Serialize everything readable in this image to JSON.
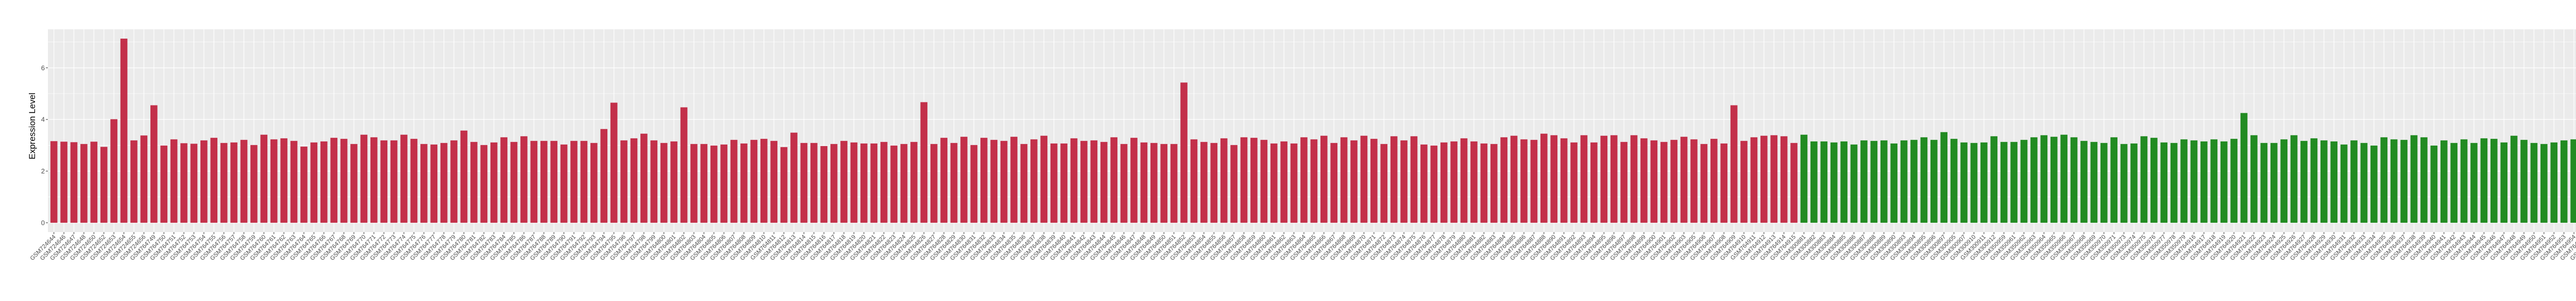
{
  "chart_data": {
    "type": "bar",
    "title": "",
    "xlabel": "",
    "ylabel": "Expression Level",
    "ylim": [
      -0.36,
      7.49
    ],
    "yticks": [
      0,
      2,
      4,
      6
    ],
    "grid": true,
    "legend": "none",
    "background": "#EBEBEB",
    "series": [
      {
        "color": "#C3304A",
        "categories": [
          "GSM724644",
          "GSM724646",
          "GSM724647",
          "GSM724648",
          "GSM724650",
          "GSM724652",
          "GSM724653",
          "GSM724654",
          "GSM724655",
          "GSM724656",
          "GSM764749",
          "GSM764750",
          "GSM764751",
          "GSM764752",
          "GSM764753",
          "GSM764754",
          "GSM764755",
          "GSM764756",
          "GSM764757",
          "GSM764758",
          "GSM764759",
          "GSM764760",
          "GSM764761",
          "GSM764762",
          "GSM764763",
          "GSM764764",
          "GSM764765",
          "GSM764766",
          "GSM764767",
          "GSM764768",
          "GSM764769",
          "GSM764770",
          "GSM764771",
          "GSM764772",
          "GSM764773",
          "GSM764774",
          "GSM764775",
          "GSM764776",
          "GSM764777",
          "GSM764778",
          "GSM764779",
          "GSM764780",
          "GSM764781",
          "GSM764782",
          "GSM764783",
          "GSM764784",
          "GSM764785",
          "GSM764786",
          "GSM764787",
          "GSM764788",
          "GSM764789",
          "GSM764790",
          "GSM764791",
          "GSM764792",
          "GSM764793",
          "GSM764794",
          "GSM764795",
          "GSM764796",
          "GSM764797",
          "GSM764798",
          "GSM764799",
          "GSM764800",
          "GSM764801",
          "GSM764802",
          "GSM764803",
          "GSM764804",
          "GSM764805",
          "GSM764806",
          "GSM764807",
          "GSM764808",
          "GSM764809",
          "GSM764810",
          "GSM764811",
          "GSM764812",
          "GSM764813",
          "GSM764814",
          "GSM764815",
          "GSM764816",
          "GSM764817",
          "GSM764818",
          "GSM764819",
          "GSM764820",
          "GSM764821",
          "GSM764822",
          "GSM764823",
          "GSM764824",
          "GSM764825",
          "GSM764826",
          "GSM764827",
          "GSM764828",
          "GSM764829",
          "GSM764830",
          "GSM764831",
          "GSM764832",
          "GSM764833",
          "GSM764834",
          "GSM764835",
          "GSM764836",
          "GSM764837",
          "GSM764838",
          "GSM764839",
          "GSM764840",
          "GSM764841",
          "GSM764842",
          "GSM764843",
          "GSM764844",
          "GSM764845",
          "GSM764846",
          "GSM764847",
          "GSM764848",
          "GSM764849",
          "GSM764850",
          "GSM764851",
          "GSM764852",
          "GSM764853",
          "GSM764854",
          "GSM764855",
          "GSM764856",
          "GSM764857",
          "GSM764858",
          "GSM764859",
          "GSM764860",
          "GSM764861",
          "GSM764862",
          "GSM764863",
          "GSM764864",
          "GSM764865",
          "GSM764866",
          "GSM764867",
          "GSM764868",
          "GSM764869",
          "GSM764870",
          "GSM764871",
          "GSM764872",
          "GSM764873",
          "GSM764874",
          "GSM764875",
          "GSM764876",
          "GSM764877",
          "GSM764878",
          "GSM764879",
          "GSM764880",
          "GSM764881",
          "GSM764882",
          "GSM764883",
          "GSM764884",
          "GSM764885",
          "GSM764886",
          "GSM764887",
          "GSM764888",
          "GSM764890",
          "GSM764891",
          "GSM764892",
          "GSM764893",
          "GSM764894",
          "GSM764895",
          "GSM764896",
          "GSM764897",
          "GSM764898",
          "GSM764899",
          "GSM764900",
          "GSM764901",
          "GSM764902",
          "GSM764903",
          "GSM764905",
          "GSM764906",
          "GSM764907",
          "GSM764908",
          "GSM764909",
          "GSM764910",
          "GSM764911",
          "GSM764912",
          "GSM764913",
          "GSM764914",
          "GSM764915"
        ],
        "values": [
          3.16,
          3.14,
          3.12,
          3.05,
          3.14,
          2.94,
          4.01,
          7.13,
          3.19,
          3.38,
          4.55,
          2.99,
          3.23,
          3.08,
          3.06,
          3.19,
          3.29,
          3.09,
          3.11,
          3.21,
          3.01,
          3.41,
          3.23,
          3.27,
          3.17,
          2.95,
          3.11,
          3.15,
          3.29,
          3.25,
          3.05,
          3.41,
          3.31,
          3.19,
          3.19,
          3.41,
          3.25,
          3.05,
          3.03,
          3.09,
          3.19,
          3.57,
          3.13,
          3.01,
          3.11,
          3.31,
          3.13,
          3.35,
          3.17,
          3.17,
          3.17,
          3.03,
          3.17,
          3.17,
          3.09,
          3.63,
          4.65,
          3.19,
          3.27,
          3.45,
          3.19,
          3.09,
          3.15,
          4.47,
          3.05,
          3.05,
          2.99,
          3.03,
          3.21,
          3.07,
          3.21,
          3.25,
          3.17,
          2.93,
          3.49,
          3.09,
          3.09,
          2.97,
          3.05,
          3.17,
          3.11,
          3.07,
          3.07,
          3.13,
          2.99,
          3.05,
          3.13,
          4.67,
          3.05,
          3.29,
          3.09,
          3.33,
          3.01,
          3.29,
          3.21,
          3.17,
          3.33,
          3.05,
          3.23,
          3.37,
          3.07,
          3.07,
          3.27,
          3.17,
          3.19,
          3.13,
          3.31,
          3.05,
          3.29,
          3.11,
          3.09,
          3.05,
          3.05,
          5.43,
          3.23,
          3.13,
          3.09,
          3.27,
          3.01,
          3.31,
          3.29,
          3.21,
          3.07,
          3.15,
          3.07,
          3.31,
          3.23,
          3.37,
          3.09,
          3.31,
          3.19,
          3.37,
          3.25,
          3.05,
          3.35,
          3.19,
          3.35,
          3.03,
          2.99,
          3.11,
          3.15,
          3.27,
          3.15,
          3.07,
          3.05,
          3.31,
          3.37,
          3.23,
          3.21,
          3.45,
          3.39,
          3.27,
          3.11,
          3.39,
          3.11,
          3.37,
          3.39,
          3.13,
          3.39,
          3.27,
          3.19,
          3.13,
          3.21,
          3.33,
          3.23,
          3.05,
          3.25,
          3.07,
          4.55,
          3.17,
          3.31,
          3.37,
          3.39,
          3.35,
          3.09
        ]
      },
      {
        "color": "#228B22",
        "categories": [
          "GSM300881",
          "GSM300882",
          "GSM300883",
          "GSM300884",
          "GSM300885",
          "GSM300886",
          "GSM300887",
          "GSM300888",
          "GSM300889",
          "GSM300890",
          "GSM300893",
          "GSM300894",
          "GSM300895",
          "GSM300896",
          "GSM300897",
          "GSM300905",
          "GSM300907",
          "GSM300910",
          "GSM300911",
          "GSM300912",
          "GSM350959",
          "GSM350961",
          "GSM350962",
          "GSM350963",
          "GSM350964",
          "GSM350965",
          "GSM350966",
          "GSM350967",
          "GSM350968",
          "GSM350969",
          "GSM350970",
          "GSM350971",
          "GSM350973",
          "GSM350974",
          "GSM350975",
          "GSM350976",
          "GSM350977",
          "GSM350978",
          "GSM350979",
          "GSM764916",
          "GSM764917",
          "GSM764918",
          "GSM764919",
          "GSM764920",
          "GSM764921",
          "GSM764922",
          "GSM764923",
          "GSM764924",
          "GSM764925",
          "GSM764926",
          "GSM764927",
          "GSM764928",
          "GSM764929",
          "GSM764930",
          "GSM764931",
          "GSM764932",
          "GSM764933",
          "GSM764934",
          "GSM764935",
          "GSM764936",
          "GSM764937",
          "GSM764938",
          "GSM764939",
          "GSM764940",
          "GSM764941",
          "GSM764942",
          "GSM764943",
          "GSM764944",
          "GSM764945",
          "GSM764946",
          "GSM764947",
          "GSM764948",
          "GSM764949",
          "GSM764950",
          "GSM764951",
          "GSM764952",
          "GSM764953",
          "GSM764954",
          "GSM764955",
          "GSM764956",
          "GSM764957",
          "GSM764958",
          "GSM764959",
          "GSM764960",
          "GSM80748",
          "GSM80749"
        ],
        "values": [
          3.41,
          3.15,
          3.15,
          3.11,
          3.15,
          3.03,
          3.19,
          3.17,
          3.19,
          3.07,
          3.19,
          3.21,
          3.31,
          3.21,
          3.51,
          3.25,
          3.11,
          3.09,
          3.11,
          3.35,
          3.13,
          3.13,
          3.21,
          3.31,
          3.39,
          3.33,
          3.41,
          3.31,
          3.17,
          3.13,
          3.09,
          3.31,
          3.05,
          3.07,
          3.35,
          3.29,
          3.11,
          3.09,
          3.23,
          3.19,
          3.15,
          3.23,
          3.15,
          3.25,
          4.25,
          3.39,
          3.09,
          3.09,
          3.23,
          3.39,
          3.17,
          3.27,
          3.19,
          3.15,
          3.03,
          3.19,
          3.09,
          2.99,
          3.31,
          3.23,
          3.21,
          3.39,
          3.31,
          2.99,
          3.19,
          3.09,
          3.23,
          3.09,
          3.27,
          3.25,
          3.11,
          3.37,
          3.21,
          3.09,
          3.05,
          3.11,
          3.19,
          3.23,
          2.99,
          3.51,
          3.11,
          3.17,
          3.27,
          3.17,
          3.37,
          3.47
        ]
      }
    ]
  }
}
